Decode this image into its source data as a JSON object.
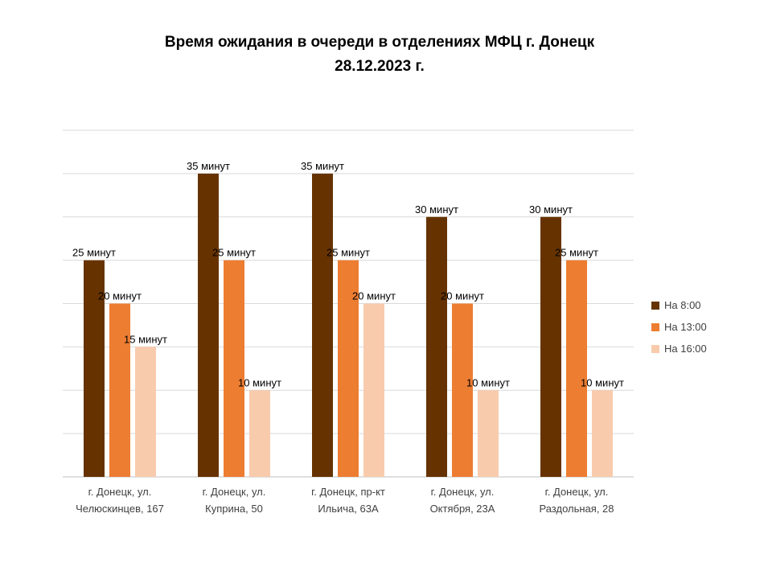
{
  "chart_data": {
    "type": "bar",
    "title_line1": "Время ожидания в очереди в отделениях МФЦ г. Донецк",
    "title_line2": "28.12.2023 г.",
    "categories": [
      [
        "г. Донецк, ул.",
        "Челюскинцев, 167"
      ],
      [
        "г. Донецк, ул.",
        "Куприна, 50"
      ],
      [
        "г. Донецк, пр-кт",
        "Ильича, 63А"
      ],
      [
        "г. Донецк, ул.",
        "Октября, 23А"
      ],
      [
        "г. Донецк, ул.",
        "Раздольная, 28"
      ]
    ],
    "series": [
      {
        "name": "На 8:00",
        "color": "#663300",
        "values": [
          25,
          35,
          35,
          30,
          30
        ]
      },
      {
        "name": "На 13:00",
        "color": "#ED7D31",
        "values": [
          20,
          25,
          25,
          20,
          25
        ]
      },
      {
        "name": "На 16:00",
        "color": "#F8CBAD",
        "values": [
          15,
          10,
          20,
          10,
          10
        ]
      }
    ],
    "value_suffix": " минут",
    "ylim": [
      0,
      40
    ],
    "grid_step": 5,
    "grid": true,
    "legend_position": "right"
  }
}
